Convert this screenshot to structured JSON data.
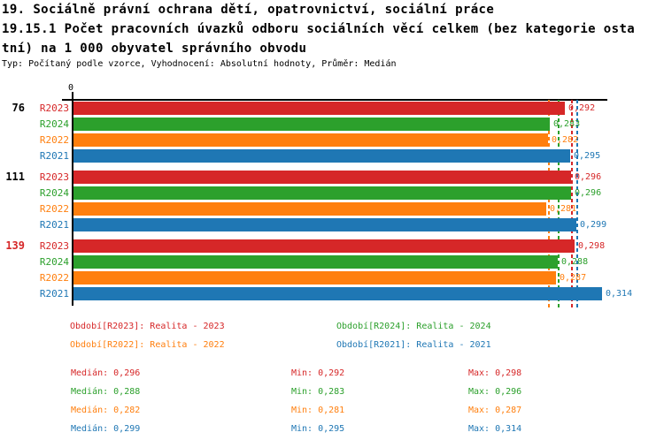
{
  "header": {
    "title_lines": [
      "19. Sociálně právní ochrana dětí, opatrovnictví, sociální práce",
      "19.15.1 Počet pracovních úvazků odboru sociálních věcí celkem (bez kategorie osta",
      "tní) na 1 000 obyvatel správního obvodu"
    ],
    "subtitle": "Typ: Počítaný podle vzorce, Vyhodnocení: Absolutní hodnoty, Průměr: Medián"
  },
  "chart_data": {
    "type": "bar",
    "orientation": "horizontal",
    "x_axis": {
      "origin_tick_label": "0",
      "xlim": [
        0,
        0.317
      ],
      "grid": false
    },
    "row_order": [
      "R2023",
      "R2024",
      "R2022",
      "R2021"
    ],
    "series": [
      {
        "id": "R2023",
        "color": "#d62728",
        "median": 0.296
      },
      {
        "id": "R2024",
        "color": "#2ca02c",
        "median": 0.288
      },
      {
        "id": "R2022",
        "color": "#ff7f0e",
        "median": 0.282
      },
      {
        "id": "R2021",
        "color": "#1f77b4",
        "median": 0.299
      }
    ],
    "groups": [
      {
        "label": "76",
        "label_color": "#000000",
        "values": {
          "R2023": 0.292,
          "R2024": 0.283,
          "R2022": 0.282,
          "R2021": 0.295
        },
        "display": {
          "R2023": "0,292",
          "R2024": "0,283",
          "R2022": "0,282",
          "R2021": "0,295"
        }
      },
      {
        "label": "111",
        "label_color": "#000000",
        "values": {
          "R2023": 0.296,
          "R2024": 0.296,
          "R2022": 0.281,
          "R2021": 0.299
        },
        "display": {
          "R2023": "0,296",
          "R2024": "0,296",
          "R2022": "0,281",
          "R2021": "0,299"
        }
      },
      {
        "label": "139",
        "label_color": "#d62728",
        "values": {
          "R2023": 0.298,
          "R2024": 0.288,
          "R2022": 0.287,
          "R2021": 0.314
        },
        "display": {
          "R2023": "0,298",
          "R2024": "0,288",
          "R2022": "0,287",
          "R2021": "0,314"
        }
      }
    ]
  },
  "legend": {
    "rows": [
      [
        {
          "series": "R2023",
          "text": "Období[R2023]: Realita - 2023",
          "color": "#d62728"
        },
        {
          "series": "R2024",
          "text": "Období[R2024]: Realita - 2024",
          "color": "#2ca02c"
        }
      ],
      [
        {
          "series": "R2022",
          "text": "Období[R2022]: Realita - 2022",
          "color": "#ff7f0e"
        },
        {
          "series": "R2021",
          "text": "Období[R2021]: Realita - 2021",
          "color": "#1f77b4"
        }
      ]
    ]
  },
  "stats": {
    "rows": [
      {
        "series": "R2023",
        "color": "#d62728",
        "median": "Medián: 0,296",
        "min": "Min: 0,292",
        "max": "Max: 0,298"
      },
      {
        "series": "R2024",
        "color": "#2ca02c",
        "median": "Medián: 0,288",
        "min": "Min: 0,283",
        "max": "Max: 0,296"
      },
      {
        "series": "R2022",
        "color": "#ff7f0e",
        "median": "Medián: 0,282",
        "min": "Min: 0,281",
        "max": "Max: 0,287"
      },
      {
        "series": "R2021",
        "color": "#1f77b4",
        "median": "Medián: 0,299",
        "min": "Min: 0,295",
        "max": "Max: 0,314"
      }
    ]
  }
}
